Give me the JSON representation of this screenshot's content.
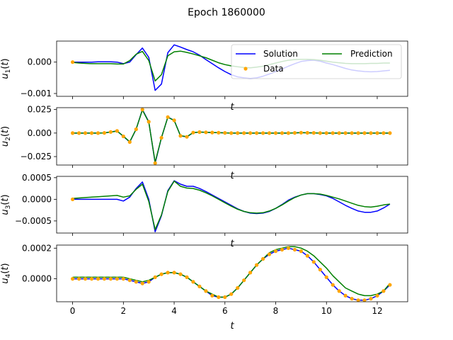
{
  "figure": {
    "title": "Epoch 1860000"
  },
  "colors": {
    "solution": "#0000ff",
    "prediction": "#008000",
    "data": "#ffa500"
  },
  "legend": {
    "solution": "Solution",
    "prediction": "Prediction",
    "data": "Data"
  },
  "chart_data": [
    {
      "type": "line",
      "ylabel": "u_1(t)",
      "xlabel": "t",
      "xlim": [
        -0.63,
        13.2
      ],
      "ylim": [
        -0.00109,
        0.00067
      ],
      "yticks": [
        -0.001,
        0.0
      ],
      "ytick_labels": [
        "−0.001",
        "0.000"
      ],
      "legend": "top-right",
      "x": [
        0,
        0.25,
        0.5,
        0.75,
        1,
        1.25,
        1.5,
        1.75,
        2,
        2.25,
        2.5,
        2.75,
        3,
        3.25,
        3.5,
        3.75,
        4,
        4.25,
        4.5,
        4.75,
        5,
        5.25,
        5.5,
        5.75,
        6,
        6.25,
        6.5,
        6.75,
        7,
        7.25,
        7.5,
        7.75,
        8,
        8.25,
        8.5,
        8.75,
        9,
        9.25,
        9.5,
        9.75,
        10,
        10.25,
        10.5,
        10.75,
        11,
        11.25,
        11.5,
        11.75,
        12,
        12.25,
        12.5
      ],
      "series": [
        {
          "name": "Solution",
          "values": [
            0,
            0,
            0,
            0,
            1e-05,
            1e-05,
            1e-05,
            0,
            -5e-05,
            0,
            0.00024,
            0.00045,
            0.00015,
            -0.0009,
            -0.0007,
            0.0003,
            0.00055,
            0.00048,
            0.0004,
            0.00033,
            0.00022,
            8e-05,
            -5e-05,
            -0.00018,
            -0.0003,
            -0.0004,
            -0.00047,
            -0.0005,
            -0.00052,
            -0.0005,
            -0.00045,
            -0.00038,
            -0.0003,
            -0.00022,
            -0.00013,
            -5e-05,
            2e-05,
            5e-05,
            6e-05,
            3e-05,
            -3e-05,
            -8e-05,
            -0.00014,
            -0.0002,
            -0.00025,
            -0.00028,
            -0.0003,
            -0.00031,
            -0.0003,
            -0.00028,
            -0.00026
          ]
        },
        {
          "name": "Prediction",
          "values": [
            -1e-05,
            -3e-05,
            -4e-05,
            -5e-05,
            -5e-05,
            -5e-05,
            -5e-05,
            -6e-05,
            -6e-05,
            5e-05,
            0.00025,
            0.00034,
            5e-05,
            -0.0006,
            -0.0004,
            0.0002,
            0.00033,
            0.00035,
            0.00031,
            0.00026,
            0.0002,
            0.00014,
            6e-05,
            -2e-05,
            -8e-05,
            -0.00012,
            -0.00015,
            -0.00017,
            -0.00018,
            -0.00016,
            -0.00013,
            -8e-05,
            -3e-05,
            2e-05,
            6e-05,
            8e-05,
            9e-05,
            9e-05,
            8e-05,
            6e-05,
            3e-05,
            0,
            -2e-05,
            -4e-05,
            -5e-05,
            -5e-05,
            -5e-05,
            -4e-05,
            -4e-05,
            -3e-05,
            -3e-05
          ]
        }
      ],
      "data_points": {
        "name": "Data",
        "x": [
          0
        ],
        "y": [
          0
        ]
      }
    },
    {
      "type": "line",
      "ylabel": "u_2(t)",
      "xlabel": "t",
      "xlim": [
        -0.63,
        13.2
      ],
      "ylim": [
        -0.034,
        0.027
      ],
      "yticks": [
        -0.025,
        0.0,
        0.025
      ],
      "ytick_labels": [
        "−0.025",
        "0.000",
        "0.025"
      ],
      "x": [
        0,
        0.25,
        0.5,
        0.75,
        1,
        1.25,
        1.5,
        1.75,
        2,
        2.25,
        2.5,
        2.75,
        3,
        3.25,
        3.5,
        3.75,
        4,
        4.25,
        4.5,
        4.75,
        5,
        5.25,
        5.5,
        5.75,
        6,
        6.25,
        6.5,
        6.75,
        7,
        7.25,
        7.5,
        7.75,
        8,
        8.25,
        8.5,
        8.75,
        9,
        9.25,
        9.5,
        9.75,
        10,
        10.25,
        10.5,
        10.75,
        11,
        11.25,
        11.5,
        11.75,
        12,
        12.25,
        12.5
      ],
      "series": [
        {
          "name": "Solution",
          "values": [
            0,
            0,
            0,
            0,
            0,
            0.0002,
            0.0012,
            0.0022,
            -0.0035,
            -0.0095,
            0.004,
            0.025,
            0.012,
            -0.032,
            -0.005,
            0.017,
            0.0135,
            -0.003,
            -0.004,
            0.0005,
            0.001,
            0.0008,
            0.0006,
            0.0004,
            0.0002,
            0,
            0,
            0,
            0,
            0,
            0,
            0,
            0,
            0,
            0,
            0.0002,
            0.0004,
            0.0003,
            0.0002,
            0,
            0,
            0,
            0,
            0,
            0,
            0,
            0,
            0,
            0,
            0,
            0
          ]
        },
        {
          "name": "Prediction",
          "values": [
            0,
            0,
            0,
            0,
            0,
            0.0002,
            0.0011,
            0.0021,
            -0.0033,
            -0.0093,
            0.0042,
            0.0245,
            0.0115,
            -0.031,
            -0.0048,
            0.0168,
            0.0133,
            -0.0028,
            -0.0038,
            0.0005,
            0.001,
            0.0008,
            0.0006,
            0.0004,
            0.0002,
            0,
            0,
            0,
            0,
            0,
            0,
            0,
            0,
            0,
            0,
            0.0002,
            0.0004,
            0.0003,
            0.0002,
            0,
            0,
            0,
            0,
            0,
            0,
            0,
            0,
            0,
            0,
            0,
            0
          ]
        }
      ],
      "data_points": {
        "name": "Data",
        "x": [
          0,
          0.25,
          0.5,
          0.75,
          1,
          1.25,
          1.5,
          1.75,
          2,
          2.25,
          2.5,
          2.75,
          3,
          3.25,
          3.5,
          3.75,
          4,
          4.25,
          4.5,
          4.75,
          5,
          5.25,
          5.5,
          5.75,
          6,
          6.25,
          6.5,
          6.75,
          7,
          7.25,
          7.5,
          7.75,
          8,
          8.25,
          8.5,
          8.75,
          9,
          9.25,
          9.5,
          9.75,
          10,
          10.25,
          10.5,
          10.75,
          11,
          11.25,
          11.5,
          11.75,
          12,
          12.25,
          12.5
        ],
        "y": [
          0,
          0,
          0,
          0,
          0,
          0.0002,
          0.0012,
          0.0022,
          -0.0035,
          -0.0095,
          0.004,
          0.025,
          0.012,
          -0.032,
          -0.005,
          0.017,
          0.0135,
          -0.003,
          -0.004,
          0.0005,
          0.001,
          0.0008,
          0.0006,
          0.0004,
          0.0002,
          0,
          0,
          0,
          0,
          0,
          0,
          0,
          0,
          0,
          0,
          0.0002,
          0.0004,
          0.0003,
          0.0002,
          0,
          0,
          0,
          0,
          0,
          0,
          0,
          0,
          0,
          0,
          0,
          0
        ]
      }
    },
    {
      "type": "line",
      "ylabel": "u_3(t)",
      "xlabel": "t",
      "xlim": [
        -0.63,
        13.2
      ],
      "ylim": [
        -0.00078,
        0.00053
      ],
      "yticks": [
        -0.0005,
        0.0,
        0.0005
      ],
      "ytick_labels": [
        "−0.0005",
        "0.0000",
        "0.0005"
      ],
      "x": [
        0,
        0.25,
        0.5,
        0.75,
        1,
        1.25,
        1.5,
        1.75,
        2,
        2.25,
        2.5,
        2.75,
        3,
        3.25,
        3.5,
        3.75,
        4,
        4.25,
        4.5,
        4.75,
        5,
        5.25,
        5.5,
        5.75,
        6,
        6.25,
        6.5,
        6.75,
        7,
        7.25,
        7.5,
        7.75,
        8,
        8.25,
        8.5,
        8.75,
        9,
        9.25,
        9.5,
        9.75,
        10,
        10.25,
        10.5,
        10.75,
        11,
        11.25,
        11.5,
        11.75,
        12,
        12.25,
        12.5
      ],
      "series": [
        {
          "name": "Solution",
          "values": [
            0,
            0,
            0,
            0,
            0,
            0,
            0,
            0,
            -4e-05,
            5e-05,
            0.00025,
            0.0004,
            0,
            -0.00075,
            -0.00038,
            0.0002,
            0.00043,
            0.00035,
            0.0003,
            0.0003,
            0.00025,
            0.00018,
            0.0001,
            2e-05,
            -6e-05,
            -0.00014,
            -0.00022,
            -0.00028,
            -0.00032,
            -0.00033,
            -0.00032,
            -0.00028,
            -0.00021,
            -0.00012,
            -2e-05,
            5e-05,
            0.0001,
            0.00013,
            0.00013,
            0.00011,
            8e-05,
            2e-05,
            -6e-05,
            -0.00014,
            -0.00021,
            -0.00027,
            -0.0003,
            -0.0003,
            -0.00027,
            -0.0002,
            -0.00011
          ]
        },
        {
          "name": "Prediction",
          "values": [
            2e-05,
            3e-05,
            4e-05,
            5e-05,
            6e-05,
            7e-05,
            8e-05,
            9e-05,
            5e-05,
            8e-05,
            0.00023,
            0.00035,
            -5e-05,
            -0.0007,
            -0.00036,
            0.00018,
            0.00042,
            0.0003,
            0.00026,
            0.00025,
            0.00021,
            0.00015,
            8e-05,
            0,
            -8e-05,
            -0.00016,
            -0.00023,
            -0.00028,
            -0.00031,
            -0.00032,
            -0.00031,
            -0.00027,
            -0.00021,
            -0.00013,
            -4e-05,
            4e-05,
            0.0001,
            0.00013,
            0.00013,
            0.00012,
            9e-05,
            5e-05,
            1e-05,
            -4e-05,
            -9e-05,
            -0.00014,
            -0.00017,
            -0.00018,
            -0.00016,
            -0.00013,
            -0.00011
          ]
        }
      ],
      "data_points": {
        "name": "Data",
        "x": [
          0
        ],
        "y": [
          0
        ]
      }
    },
    {
      "type": "line",
      "ylabel": "u_4(t)",
      "xlabel": "t",
      "xlim": [
        -0.63,
        13.2
      ],
      "ylim": [
        -0.00015,
        0.00022
      ],
      "xticks": [
        0,
        2,
        4,
        6,
        8,
        10,
        12
      ],
      "xtick_labels": [
        "0",
        "2",
        "4",
        "6",
        "8",
        "10",
        "12"
      ],
      "yticks": [
        0.0,
        0.0002
      ],
      "ytick_labels": [
        "0.0000",
        "0.0002"
      ],
      "x": [
        0,
        0.25,
        0.5,
        0.75,
        1,
        1.25,
        1.5,
        1.75,
        2,
        2.25,
        2.5,
        2.75,
        3,
        3.25,
        3.5,
        3.75,
        4,
        4.25,
        4.5,
        4.75,
        5,
        5.25,
        5.5,
        5.75,
        6,
        6.25,
        6.5,
        6.75,
        7,
        7.25,
        7.5,
        7.75,
        8,
        8.25,
        8.5,
        8.75,
        9,
        9.25,
        9.5,
        9.75,
        10,
        10.25,
        10.5,
        10.75,
        11,
        11.25,
        11.5,
        11.75,
        12,
        12.25,
        12.5
      ],
      "series": [
        {
          "name": "Solution",
          "values": [
            0,
            0,
            0,
            0,
            0,
            0,
            0,
            0,
            0,
            -1e-05,
            -2e-05,
            -3e-05,
            -2e-05,
            1e-05,
            3e-05,
            4e-05,
            4e-05,
            3e-05,
            1e-05,
            -2e-05,
            -5e-05,
            -8e-05,
            -0.00011,
            -0.00012,
            -0.00012,
            -0.0001,
            -6e-05,
            -1e-05,
            4e-05,
            9e-05,
            0.00013,
            0.00016,
            0.00018,
            0.00019,
            0.0002,
            0.00019,
            0.00018,
            0.00015,
            0.00011,
            6e-05,
            1e-05,
            -4e-05,
            -8e-05,
            -0.00011,
            -0.00013,
            -0.00014,
            -0.00014,
            -0.00013,
            -0.00011,
            -8e-05,
            -4e-05
          ]
        },
        {
          "name": "Prediction",
          "values": [
            1e-05,
            1e-05,
            1e-05,
            1e-05,
            1e-05,
            1e-05,
            1e-05,
            1e-05,
            1e-05,
            0,
            -1e-05,
            -2e-05,
            -1e-05,
            1e-05,
            3e-05,
            4e-05,
            4e-05,
            3e-05,
            1e-05,
            -2e-05,
            -5e-05,
            -8e-05,
            -0.0001,
            -0.00012,
            -0.00012,
            -0.0001,
            -6e-05,
            -1e-05,
            4e-05,
            9e-05,
            0.00013,
            0.00017,
            0.00019,
            0.0002,
            0.00021,
            0.00021,
            0.0002,
            0.00018,
            0.00015,
            0.00011,
            7e-05,
            2e-05,
            -2e-05,
            -6e-05,
            -8e-05,
            -0.0001,
            -0.00011,
            -0.00011,
            -0.0001,
            -8e-05,
            -3e-05
          ]
        }
      ],
      "data_points": {
        "name": "Data",
        "x": [
          0,
          0.25,
          0.5,
          0.75,
          1,
          1.25,
          1.5,
          1.75,
          2,
          2.25,
          2.5,
          2.75,
          3,
          3.25,
          3.5,
          3.75,
          4,
          4.25,
          4.5,
          4.75,
          5,
          5.25,
          5.5,
          5.75,
          6,
          6.25,
          6.5,
          6.75,
          7,
          7.25,
          7.5,
          7.75,
          8,
          8.25,
          8.5,
          8.75,
          9,
          9.25,
          9.5,
          9.75,
          10,
          10.25,
          10.5,
          10.75,
          11,
          11.25,
          11.5,
          11.75,
          12,
          12.25,
          12.5
        ],
        "y": [
          0,
          0,
          0,
          0,
          0,
          0,
          0,
          0,
          0,
          -1e-05,
          -2e-05,
          -3e-05,
          -2e-05,
          1e-05,
          3e-05,
          4e-05,
          4e-05,
          3e-05,
          1e-05,
          -2e-05,
          -5e-05,
          -8e-05,
          -0.00011,
          -0.00012,
          -0.00012,
          -0.0001,
          -6e-05,
          -1e-05,
          4e-05,
          9e-05,
          0.00013,
          0.00016,
          0.00018,
          0.00019,
          0.0002,
          0.00019,
          0.00018,
          0.00015,
          0.00011,
          6e-05,
          1e-05,
          -4e-05,
          -8e-05,
          -0.00011,
          -0.00013,
          -0.00014,
          -0.00014,
          -0.00013,
          -0.00011,
          -8e-05,
          -4e-05
        ]
      }
    }
  ]
}
